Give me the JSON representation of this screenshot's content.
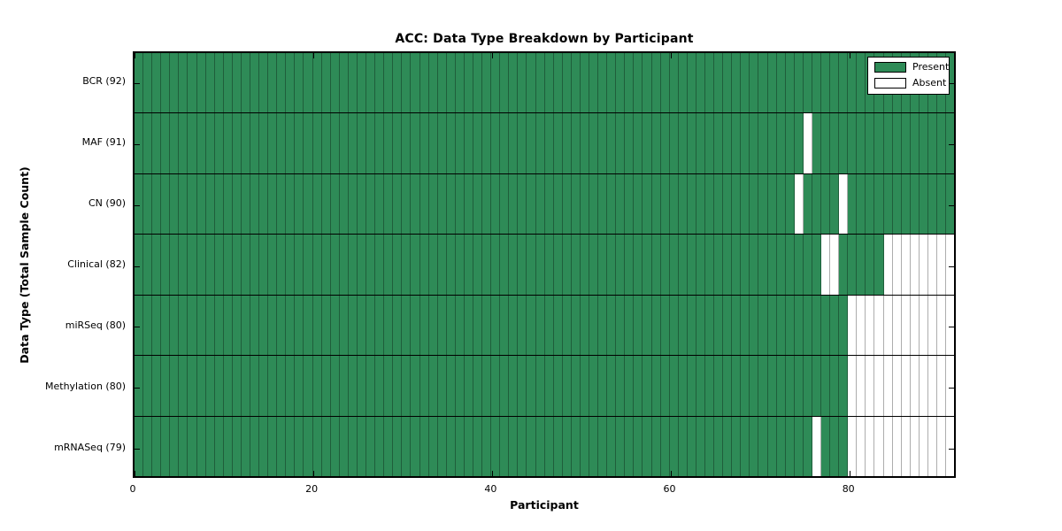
{
  "chart_data": {
    "type": "heatmap",
    "title": "ACC: Data Type Breakdown by Participant",
    "xlabel": "Participant",
    "ylabel": "Data Type (Total Sample Count)",
    "x_ticks": [
      0,
      20,
      40,
      60,
      80
    ],
    "xlim": [
      0,
      92
    ],
    "n_participants": 92,
    "grid": false,
    "legend_position": "upper right",
    "legend": [
      {
        "label": "Present",
        "color": "#2e8b57"
      },
      {
        "label": "Absent",
        "color": "#ffffff"
      }
    ],
    "colors": {
      "present": "#2e8b57",
      "absent": "#ffffff",
      "cell_line": "rgba(0,0,0,0.32)",
      "row_separator": "#000000",
      "axis_border": "#000000"
    },
    "rows": [
      {
        "data_type": "BCR",
        "label": "BCR (92)",
        "total_samples": 92,
        "absent_participants": []
      },
      {
        "data_type": "MAF",
        "label": "MAF (91)",
        "total_samples": 91,
        "absent_participants": [
          75
        ]
      },
      {
        "data_type": "CN",
        "label": "CN (90)",
        "total_samples": 90,
        "absent_participants": [
          74,
          79
        ]
      },
      {
        "data_type": "Clinical",
        "label": "Clinical (82)",
        "total_samples": 82,
        "absent_participants": [
          77,
          78,
          84,
          85,
          86,
          87,
          88,
          89,
          90,
          91
        ]
      },
      {
        "data_type": "miRSeq",
        "label": "miRSeq (80)",
        "total_samples": 80,
        "absent_participants": [
          80,
          81,
          82,
          83,
          84,
          85,
          86,
          87,
          88,
          89,
          90,
          91
        ]
      },
      {
        "data_type": "Methylation",
        "label": "Methylation (80)",
        "total_samples": 80,
        "absent_participants": [
          80,
          81,
          82,
          83,
          84,
          85,
          86,
          87,
          88,
          89,
          90,
          91
        ]
      },
      {
        "data_type": "mRNASeq",
        "label": "mRNASeq (79)",
        "total_samples": 79,
        "absent_participants": [
          76,
          80,
          81,
          82,
          83,
          84,
          85,
          86,
          87,
          88,
          89,
          90,
          91
        ]
      }
    ]
  }
}
